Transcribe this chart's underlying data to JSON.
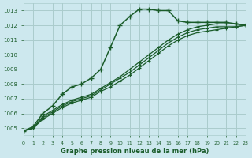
{
  "title": "Graphe pression niveau de la mer (hPa)",
  "bg_color": "#cde8ee",
  "grid_color": "#aacccc",
  "line_color": "#1a5c2a",
  "xlim": [
    0,
    23
  ],
  "ylim": [
    1004.5,
    1013.5
  ],
  "yticks": [
    1005,
    1006,
    1007,
    1008,
    1009,
    1010,
    1011,
    1012,
    1013
  ],
  "xticks": [
    0,
    1,
    2,
    3,
    4,
    5,
    6,
    7,
    8,
    9,
    10,
    11,
    12,
    13,
    14,
    15,
    16,
    17,
    18,
    19,
    20,
    21,
    22,
    23
  ],
  "series": [
    [
      1004.8,
      1005.1,
      1006.0,
      1006.5,
      1007.3,
      1007.8,
      1008.0,
      1008.4,
      1009.0,
      1010.5,
      1012.0,
      1012.6,
      1013.1,
      1013.1,
      1013.0,
      1013.0,
      1012.3,
      1012.2,
      1012.2,
      1012.2,
      1012.2,
      1012.2,
      1012.1,
      1012.0
    ],
    [
      1004.8,
      1005.0,
      1005.8,
      1006.2,
      1006.6,
      1006.9,
      1007.1,
      1007.3,
      1007.7,
      1008.1,
      1008.5,
      1009.0,
      1009.5,
      1010.0,
      1010.5,
      1011.0,
      1011.4,
      1011.7,
      1011.9,
      1012.0,
      1012.1,
      1012.1,
      1012.1,
      1012.0
    ],
    [
      1004.8,
      1005.0,
      1005.7,
      1006.1,
      1006.5,
      1006.8,
      1007.0,
      1007.2,
      1007.6,
      1008.0,
      1008.4,
      1008.8,
      1009.3,
      1009.8,
      1010.3,
      1010.8,
      1011.2,
      1011.5,
      1011.7,
      1011.8,
      1011.9,
      1011.9,
      1011.9,
      1012.0
    ],
    [
      1004.8,
      1005.0,
      1005.6,
      1006.0,
      1006.4,
      1006.7,
      1006.9,
      1007.1,
      1007.5,
      1007.8,
      1008.2,
      1008.6,
      1009.1,
      1009.6,
      1010.1,
      1010.6,
      1011.0,
      1011.3,
      1011.5,
      1011.6,
      1011.7,
      1011.8,
      1011.9,
      1012.0
    ]
  ]
}
